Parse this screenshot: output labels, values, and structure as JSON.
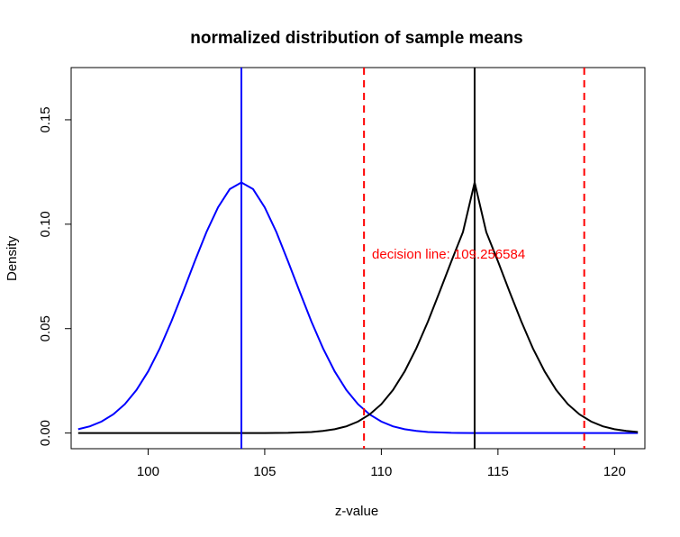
{
  "chart_data": {
    "type": "line",
    "title": "normalized distribution of sample means",
    "xlabel": "z-value",
    "ylabel": "Density",
    "xlim": [
      96.7,
      121.3
    ],
    "ylim": [
      -0.0075,
      0.175
    ],
    "x_ticks": [
      100,
      105,
      110,
      115,
      120
    ],
    "y_ticks": [
      0.0,
      0.05,
      0.1,
      0.15
    ],
    "x_tick_labels": [
      "100",
      "105",
      "110",
      "115",
      "120"
    ],
    "y_tick_labels": [
      "0.00",
      "0.05",
      "0.10",
      "0.15"
    ],
    "grid": false,
    "legend": "none",
    "series": [
      {
        "color": "#0000ff",
        "x": [
          97.0,
          97.5,
          98.0,
          98.5,
          99.0,
          99.5,
          100.0,
          100.5,
          101.0,
          101.5,
          102.0,
          102.5,
          103.0,
          103.5,
          104.0,
          104.5,
          105.0,
          105.5,
          106.0,
          106.5,
          107.0,
          107.5,
          108.0,
          108.5,
          109.0,
          109.5,
          110.0,
          110.5,
          111.0,
          111.5,
          112.0,
          113.0,
          114.0,
          116.0,
          118.0,
          121.0
        ],
        "y": [
          0.0018,
          0.0032,
          0.0055,
          0.0089,
          0.0138,
          0.0206,
          0.0295,
          0.0405,
          0.0534,
          0.0676,
          0.0822,
          0.0962,
          0.1081,
          0.1168,
          0.12,
          0.1168,
          0.1081,
          0.0962,
          0.0822,
          0.0676,
          0.0534,
          0.0405,
          0.0295,
          0.0206,
          0.0138,
          0.0089,
          0.0055,
          0.0032,
          0.0018,
          0.001,
          0.0005,
          0.0001,
          0.0,
          0.0,
          0.0,
          0.0
        ]
      },
      {
        "color": "#000000",
        "x": [
          97.0,
          100.0,
          103.0,
          105.0,
          106.0,
          107.0,
          107.5,
          108.0,
          108.5,
          109.0,
          109.5,
          110.0,
          110.5,
          111.0,
          111.5,
          112.0,
          112.5,
          113.0,
          113.5,
          114.0,
          114.5,
          115.0,
          115.5,
          116.0,
          116.5,
          117.0,
          117.5,
          118.0,
          118.5,
          119.0,
          119.5,
          120.0,
          120.5,
          121.0
        ],
        "y": [
          0.0,
          0.0,
          0.0,
          0.0,
          0.0001,
          0.0005,
          0.001,
          0.0018,
          0.0032,
          0.0055,
          0.0089,
          0.0138,
          0.0206,
          0.0295,
          0.0405,
          0.0534,
          0.0676,
          0.0822,
          0.0962,
          0.12,
          0.0962,
          0.0822,
          0.0676,
          0.0534,
          0.0405,
          0.0295,
          0.0206,
          0.0138,
          0.0089,
          0.0055,
          0.0032,
          0.0018,
          0.001,
          0.0005
        ]
      }
    ],
    "vlines": [
      {
        "x": 104.0,
        "color": "#0000ff",
        "style": "solid"
      },
      {
        "x": 114.0,
        "color": "#000000",
        "style": "solid"
      },
      {
        "x": 109.256584,
        "color": "#ff0000",
        "style": "dashed"
      },
      {
        "x": 118.7,
        "color": "#ff0000",
        "style": "dashed"
      }
    ],
    "annotations": [
      {
        "text": "decision line: 109.256584",
        "x": 109.6,
        "y": 0.0835,
        "color": "#ff0000"
      }
    ]
  }
}
